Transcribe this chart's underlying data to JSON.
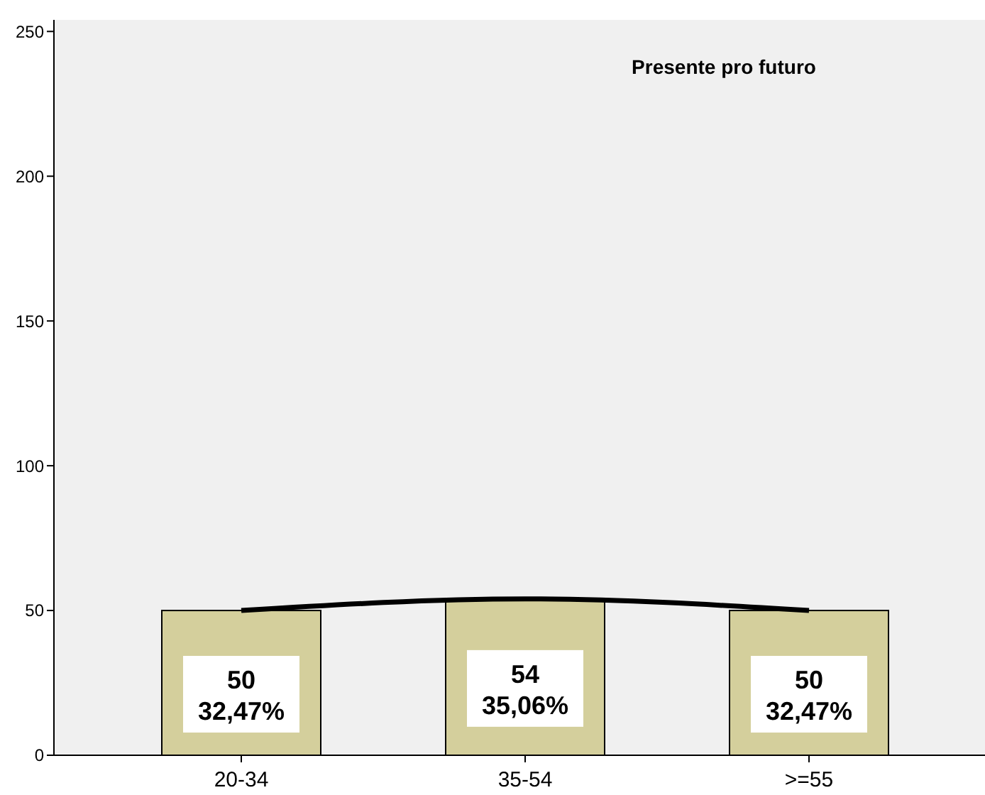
{
  "chart_data": {
    "type": "bar",
    "title": "Presente pro futuro",
    "categories": [
      "20-34",
      "35-54",
      ">=55"
    ],
    "series": [
      {
        "color": "#d4cf9c",
        "values": [
          50,
          54,
          50
        ],
        "value_labels": [
          "50\n32,47%",
          "54\n35,06%",
          "50\n32,47%"
        ]
      },
      {
        "type": "line",
        "color": "#000000",
        "values": [
          50,
          54,
          50
        ],
        "marker": "none"
      }
    ],
    "ylim": [
      0,
      254
    ],
    "yticks": [
      0,
      50,
      100,
      150,
      200,
      250
    ],
    "grid": false
  }
}
